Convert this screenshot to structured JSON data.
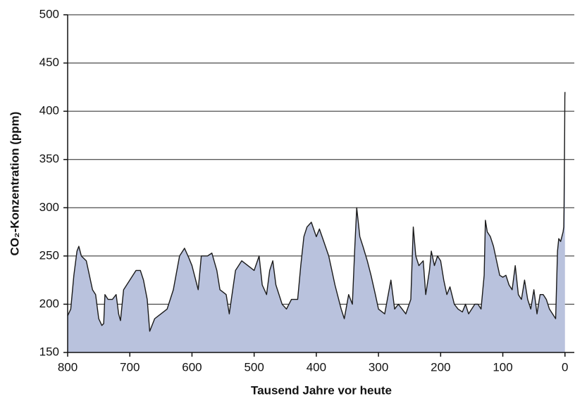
{
  "chart_data": {
    "type": "area",
    "xlabel": "Tausend Jahre vor heute",
    "ylabel": "CO₂-Konzentration (ppm)",
    "x": [
      800,
      795,
      790,
      785,
      782,
      778,
      770,
      765,
      760,
      755,
      750,
      745,
      742,
      740,
      735,
      728,
      722,
      718,
      715,
      710,
      700,
      690,
      683,
      678,
      672,
      668,
      660,
      650,
      640,
      630,
      620,
      612,
      605,
      600,
      590,
      585,
      575,
      568,
      560,
      555,
      545,
      540,
      530,
      520,
      510,
      500,
      492,
      487,
      480,
      475,
      470,
      465,
      455,
      448,
      440,
      430,
      425,
      420,
      415,
      408,
      400,
      395,
      388,
      380,
      370,
      360,
      355,
      348,
      342,
      338,
      335,
      330,
      325,
      318,
      312,
      305,
      300,
      290,
      280,
      274,
      268,
      262,
      256,
      248,
      244,
      240,
      235,
      228,
      224,
      218,
      215,
      210,
      205,
      200,
      195,
      190,
      185,
      178,
      172,
      165,
      160,
      155,
      150,
      145,
      140,
      135,
      130,
      128,
      125,
      120,
      115,
      110,
      105,
      100,
      95,
      90,
      85,
      80,
      75,
      70,
      65,
      60,
      55,
      50,
      45,
      40,
      35,
      30,
      25,
      20,
      15,
      12,
      10,
      7,
      5,
      3,
      2,
      1.5,
      1,
      0.5,
      0.2,
      0
    ],
    "values": [
      188,
      195,
      230,
      255,
      260,
      250,
      245,
      230,
      215,
      210,
      185,
      178,
      180,
      210,
      205,
      205,
      210,
      190,
      183,
      215,
      225,
      235,
      235,
      225,
      205,
      172,
      185,
      190,
      195,
      215,
      250,
      258,
      248,
      240,
      215,
      250,
      250,
      253,
      235,
      215,
      210,
      190,
      235,
      245,
      240,
      235,
      250,
      220,
      210,
      235,
      245,
      220,
      200,
      195,
      205,
      205,
      240,
      270,
      280,
      285,
      270,
      278,
      265,
      250,
      220,
      195,
      185,
      210,
      200,
      260,
      300,
      270,
      260,
      245,
      230,
      210,
      195,
      190,
      225,
      195,
      200,
      195,
      190,
      205,
      280,
      250,
      240,
      245,
      210,
      235,
      255,
      240,
      250,
      245,
      225,
      210,
      218,
      200,
      195,
      192,
      200,
      190,
      195,
      200,
      200,
      195,
      230,
      287,
      275,
      270,
      260,
      245,
      230,
      228,
      230,
      220,
      215,
      240,
      210,
      205,
      225,
      205,
      195,
      215,
      190,
      210,
      210,
      205,
      195,
      190,
      185,
      255,
      268,
      265,
      270,
      275,
      280,
      300,
      340,
      380,
      415,
      420
    ],
    "color": "#b9c2dd",
    "line_color": "#1a1a1a",
    "xlim": [
      800,
      -15
    ],
    "ylim": [
      150,
      500
    ],
    "xticks": [
      800,
      700,
      600,
      500,
      400,
      300,
      200,
      100,
      0
    ],
    "yticks": [
      150,
      200,
      250,
      300,
      350,
      400,
      450,
      500
    ],
    "grid": true
  }
}
